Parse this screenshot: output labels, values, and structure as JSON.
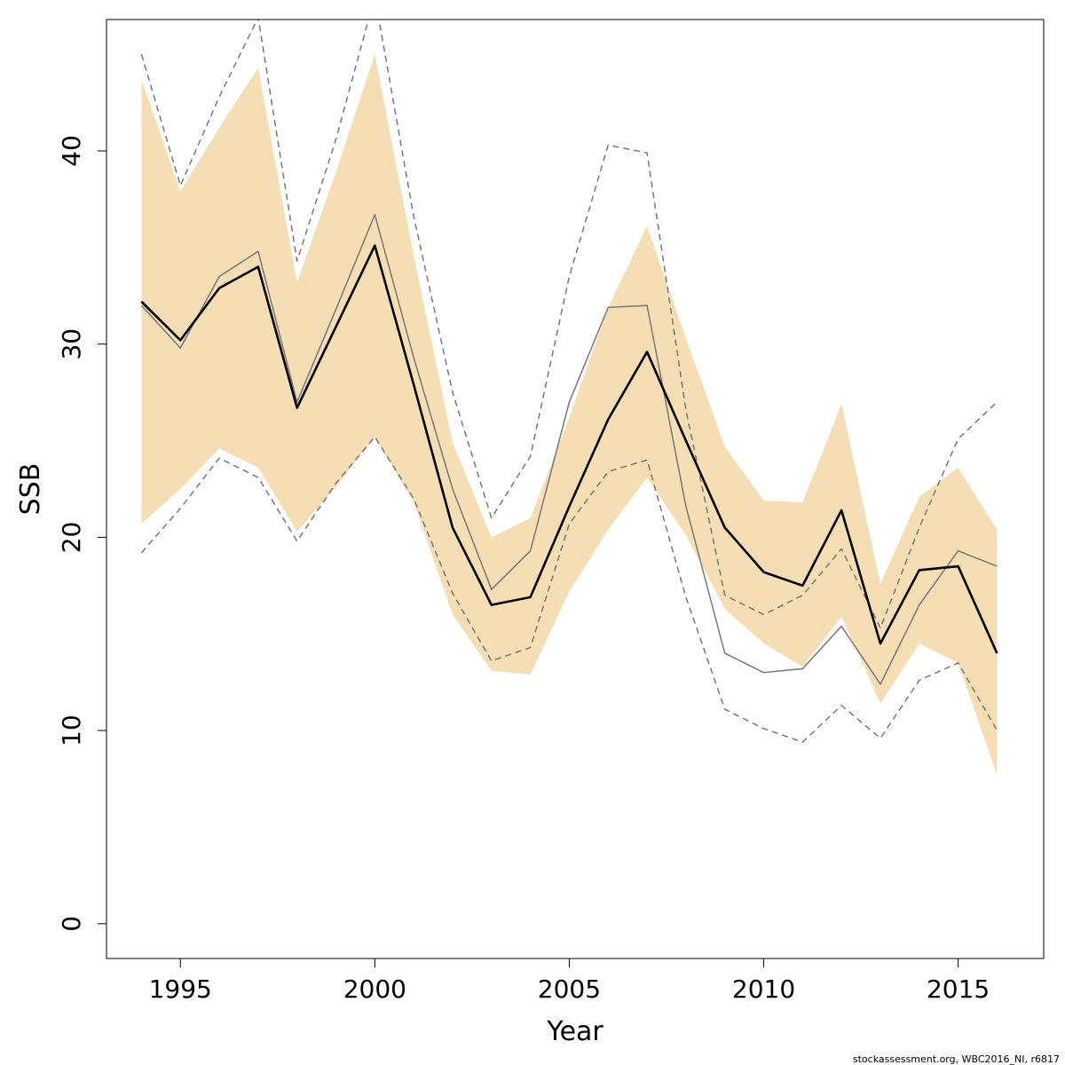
{
  "chart_data": {
    "type": "line",
    "xlabel": "Year",
    "ylabel": "SSB",
    "xlim": [
      1993.1,
      2017.2
    ],
    "ylim": [
      -1.8,
      46.8
    ],
    "xticks": [
      1995,
      2000,
      2005,
      2010,
      2015
    ],
    "yticks": [
      0,
      10,
      20,
      30,
      40
    ],
    "grid": false,
    "x": [
      1994,
      1995,
      1996,
      1997,
      1998,
      1999,
      2000,
      2001,
      2002,
      2003,
      2004,
      2005,
      2006,
      2007,
      2008,
      2009,
      2010,
      2011,
      2012,
      2013,
      2014,
      2015,
      2016
    ],
    "band": {
      "color": "#f5deb3",
      "lower": [
        20.7,
        22.5,
        24.6,
        23.6,
        20.3,
        22.6,
        25.2,
        21.8,
        16.0,
        13.1,
        12.9,
        17.2,
        20.4,
        23.1,
        20.1,
        16.3,
        14.5,
        13.3,
        15.9,
        11.4,
        14.5,
        13.5,
        7.7
      ],
      "upper": [
        43.7,
        37.9,
        41.2,
        44.3,
        33.2,
        38.9,
        45.0,
        34.6,
        24.9,
        20.0,
        21.0,
        26.2,
        31.9,
        36.1,
        30.3,
        24.7,
        21.9,
        21.8,
        26.9,
        17.6,
        22.1,
        23.6,
        20.4
      ]
    },
    "series": [
      {
        "style": "solid-thick",
        "color": "#000000",
        "values": [
          32.2,
          30.2,
          32.9,
          34.0,
          26.7,
          30.9,
          35.1,
          27.9,
          20.5,
          16.5,
          16.9,
          21.6,
          26.1,
          29.6,
          25.0,
          20.5,
          18.2,
          17.5,
          21.4,
          14.5,
          18.3,
          18.5,
          14.0
        ]
      },
      {
        "style": "solid-thin",
        "color": "#777777",
        "values": [
          32.0,
          29.8,
          33.5,
          34.8,
          27.0,
          31.8,
          36.7,
          29.3,
          22.5,
          17.3,
          19.3,
          27.0,
          31.9,
          32.0,
          21.6,
          14.0,
          13.0,
          13.2,
          15.4,
          12.4,
          16.5,
          19.3,
          18.5
        ]
      },
      {
        "style": "dashed",
        "color": "#777777",
        "values": [
          45.0,
          38.2,
          42.8,
          46.9,
          34.3,
          40.6,
          48.0,
          36.6,
          27.5,
          21.0,
          24.2,
          33.5,
          40.3,
          39.9,
          26.6,
          17.0,
          16.0,
          17.0,
          19.4,
          15.3,
          20.5,
          25.1,
          27.0
        ]
      },
      {
        "style": "dashed",
        "color": "#777777",
        "values": [
          19.2,
          21.5,
          24.1,
          23.1,
          19.8,
          22.8,
          25.2,
          22.0,
          17.1,
          13.6,
          14.3,
          20.7,
          23.4,
          24.0,
          16.9,
          11.1,
          10.1,
          9.4,
          11.3,
          9.6,
          12.6,
          13.5,
          10.0
        ]
      }
    ]
  },
  "credit": "stockassessment.org, WBC2016_NI, r6817"
}
